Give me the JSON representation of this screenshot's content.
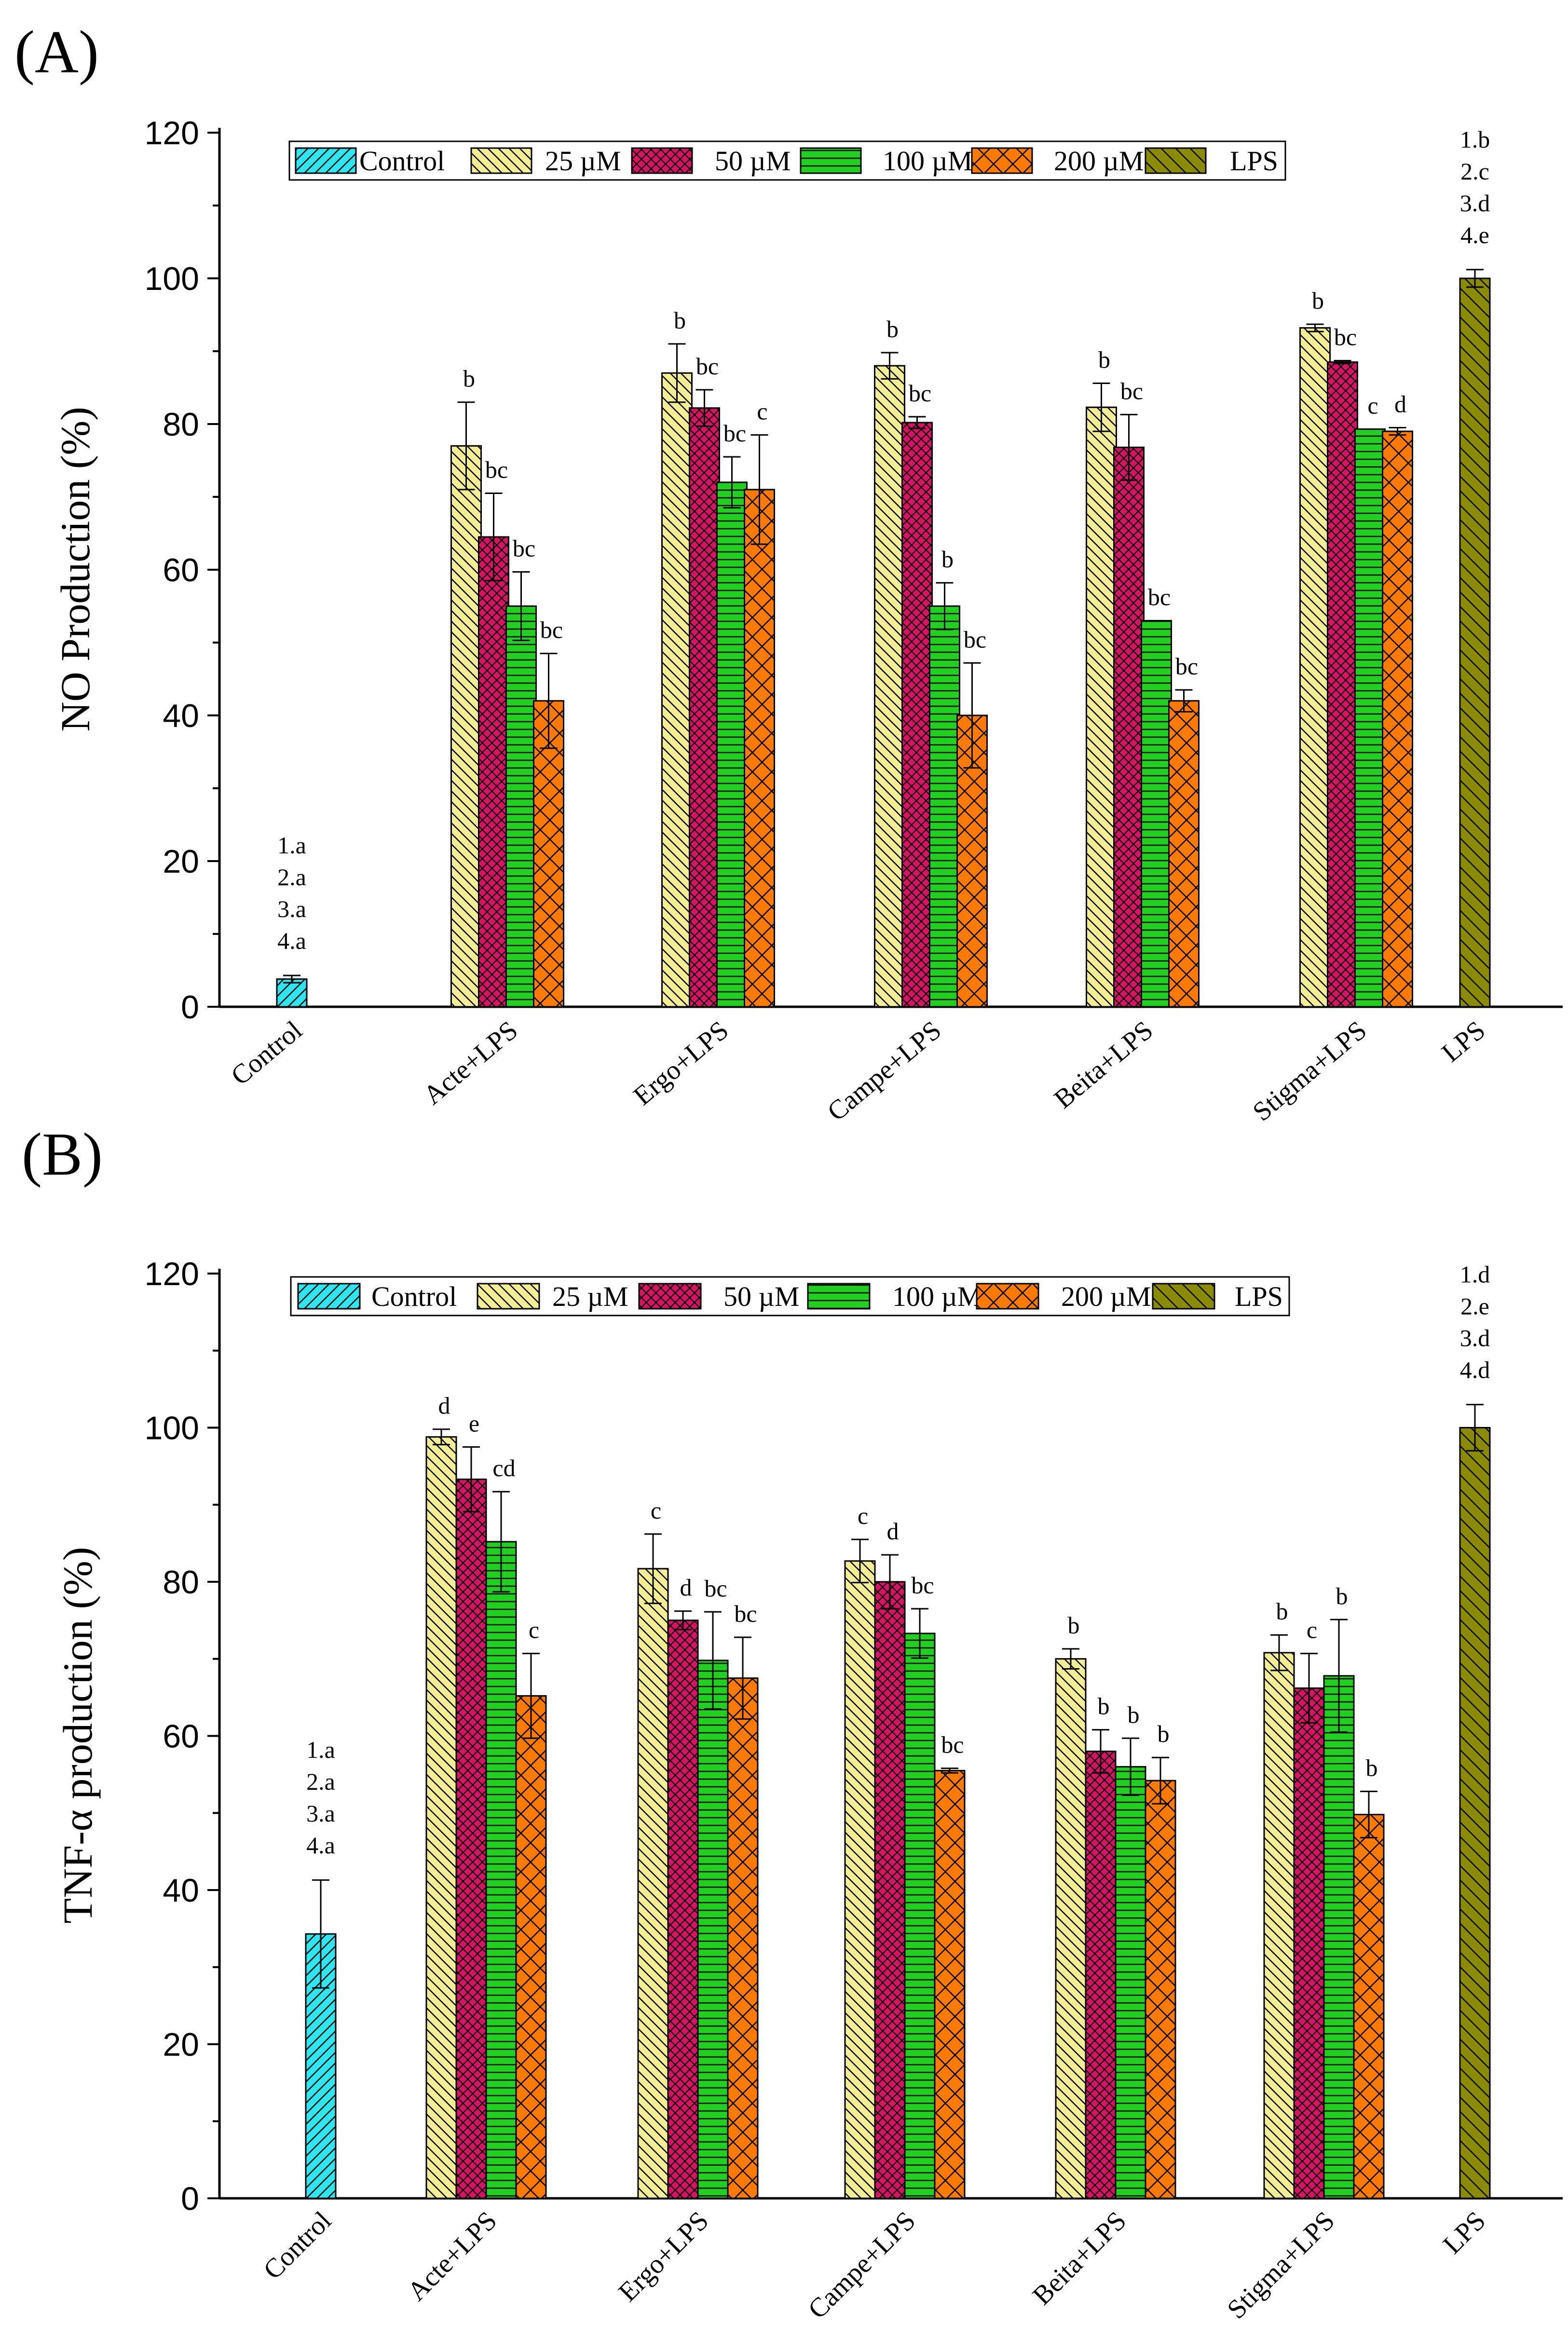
{
  "chart_data": [
    {
      "type": "bar",
      "panel": "(A)",
      "ylabel": "NO Production (%)",
      "ylim": [
        0,
        120
      ],
      "yticks": [
        0,
        20,
        40,
        60,
        80,
        100,
        120
      ],
      "categories": [
        "Control",
        "Acte+LPS",
        "Ergo+LPS",
        "Campe+LPS",
        "Beita+LPS",
        "Stigma+LPS",
        "LPS"
      ],
      "legend": [
        "Control",
        "25 µM",
        "50 µM",
        "100 µM",
        "200 µM",
        "LPS"
      ],
      "groups": [
        {
          "category": "Control",
          "bars": [
            {
              "series": "Control",
              "value": 3.8,
              "err": 0.5
            }
          ],
          "annotation": [
            "1.a",
            "2.a",
            "3.a",
            "4.a"
          ]
        },
        {
          "category": "Acte+LPS",
          "bars": [
            {
              "series": "25 µM",
              "value": 77,
              "err": 6,
              "label": "b"
            },
            {
              "series": "50 µM",
              "value": 64.5,
              "err": 6,
              "label": "bc"
            },
            {
              "series": "100 µM",
              "value": 55,
              "err": 4.7,
              "label": "bc"
            },
            {
              "series": "200 µM",
              "value": 42,
              "err": 6.5,
              "label": "bc"
            }
          ]
        },
        {
          "category": "Ergo+LPS",
          "bars": [
            {
              "series": "25 µM",
              "value": 87,
              "err": 4,
              "label": "b"
            },
            {
              "series": "50 µM",
              "value": 82.2,
              "err": 2.5,
              "label": "bc"
            },
            {
              "series": "100 µM",
              "value": 72,
              "err": 3.5,
              "label": "bc"
            },
            {
              "series": "200 µM",
              "value": 71,
              "err": 7.5,
              "label": "c"
            }
          ]
        },
        {
          "category": "Campe+LPS",
          "bars": [
            {
              "series": "25 µM",
              "value": 88,
              "err": 1.8,
              "label": "b"
            },
            {
              "series": "50 µM",
              "value": 80.2,
              "err": 0.8,
              "label": "bc"
            },
            {
              "series": "100 µM",
              "value": 55,
              "err": 3.2,
              "label": "b"
            },
            {
              "series": "200 µM",
              "value": 40,
              "err": 7.2,
              "label": "bc"
            }
          ]
        },
        {
          "category": "Beita+LPS",
          "bars": [
            {
              "series": "25 µM",
              "value": 82.3,
              "err": 3.3,
              "label": "b"
            },
            {
              "series": "50 µM",
              "value": 76.8,
              "err": 4.5,
              "label": "bc"
            },
            {
              "series": "100 µM",
              "value": 53,
              "err": 0,
              "label": "bc"
            },
            {
              "series": "200 µM",
              "value": 42,
              "err": 1.5,
              "label": "bc"
            }
          ]
        },
        {
          "category": "Stigma+LPS",
          "bars": [
            {
              "series": "25 µM",
              "value": 93.2,
              "err": 0.5,
              "label": "b"
            },
            {
              "series": "50 µM",
              "value": 88.5,
              "err": 0.2,
              "label": "bc"
            },
            {
              "series": "100 µM",
              "value": 79.3,
              "err": 0,
              "label": "c"
            },
            {
              "series": "200 µM",
              "value": 79,
              "err": 0.5,
              "label": "d"
            }
          ]
        },
        {
          "category": "LPS",
          "bars": [
            {
              "series": "LPS",
              "value": 100,
              "err": 1.2
            }
          ],
          "annotation": [
            "1.b",
            "2.c",
            "3.d",
            "4.e"
          ]
        }
      ]
    },
    {
      "type": "bar",
      "panel": "(B)",
      "ylabel": "TNF-α production (%)",
      "ylim": [
        0,
        120
      ],
      "yticks": [
        0,
        20,
        40,
        60,
        80,
        100,
        120
      ],
      "categories": [
        "Control",
        "Acte+LPS",
        "Ergo+LPS",
        "Campe+LPS",
        "Beita+LPS",
        "Stigma+LPS",
        "LPS"
      ],
      "legend": [
        "Control",
        "25 µM",
        "50 µM",
        "100 µM",
        "200 µM",
        "LPS"
      ],
      "groups": [
        {
          "category": "Control",
          "bars": [
            {
              "series": "Control",
              "value": 34.3,
              "err": 7
            }
          ],
          "annotation": [
            "1.a",
            "2.a",
            "3.a",
            "4.a"
          ]
        },
        {
          "category": "Acte+LPS",
          "bars": [
            {
              "series": "25 µM",
              "value": 98.8,
              "err": 1,
              "label": "d"
            },
            {
              "series": "50 µM",
              "value": 93.3,
              "err": 4.2,
              "label": "e"
            },
            {
              "series": "100 µM",
              "value": 85.2,
              "err": 6.5,
              "label": "cd"
            },
            {
              "series": "200 µM",
              "value": 65.2,
              "err": 5.5,
              "label": "c"
            }
          ]
        },
        {
          "category": "Ergo+LPS",
          "bars": [
            {
              "series": "25 µM",
              "value": 81.7,
              "err": 4.5,
              "label": "c"
            },
            {
              "series": "50 µM",
              "value": 75,
              "err": 1.2,
              "label": "d"
            },
            {
              "series": "100 µM",
              "value": 69.8,
              "err": 6.3,
              "label": "bc"
            },
            {
              "series": "200 µM",
              "value": 67.5,
              "err": 5.3,
              "label": "bc"
            }
          ]
        },
        {
          "category": "Campe+LPS",
          "bars": [
            {
              "series": "25 µM",
              "value": 82.7,
              "err": 2.8,
              "label": "c"
            },
            {
              "series": "50 µM",
              "value": 80,
              "err": 3.5,
              "label": "d"
            },
            {
              "series": "100 µM",
              "value": 73.3,
              "err": 3.2,
              "label": "bc"
            },
            {
              "series": "200 µM",
              "value": 55.5,
              "err": 0.3,
              "label": "bc"
            }
          ]
        },
        {
          "category": "Beita+LPS",
          "bars": [
            {
              "series": "25 µM",
              "value": 70,
              "err": 1.3,
              "label": "b"
            },
            {
              "series": "50 µM",
              "value": 58,
              "err": 2.8,
              "label": "b"
            },
            {
              "series": "100 µM",
              "value": 56,
              "err": 3.7,
              "label": "b"
            },
            {
              "series": "200 µM",
              "value": 54.2,
              "err": 3,
              "label": "b"
            }
          ]
        },
        {
          "category": "Stigma+LPS",
          "bars": [
            {
              "series": "25 µM",
              "value": 70.8,
              "err": 2.3,
              "label": "b"
            },
            {
              "series": "50 µM",
              "value": 66.2,
              "err": 4.5,
              "label": "c"
            },
            {
              "series": "100 µM",
              "value": 67.8,
              "err": 7.3,
              "label": "b"
            },
            {
              "series": "200 µM",
              "value": 49.8,
              "err": 3,
              "label": "b"
            }
          ]
        },
        {
          "category": "LPS",
          "bars": [
            {
              "series": "LPS",
              "value": 100,
              "err": 3
            }
          ],
          "annotation": [
            "1.d",
            "2.e",
            "3.d",
            "4.d"
          ]
        }
      ]
    }
  ],
  "colors": {
    "Control": "#2EE6F0",
    "25 µM": "#F3EE93",
    "50 µM": "#D61364",
    "100 µM": "#1FD01F",
    "200 µM": "#FF7A00",
    "LPS": "#8B8B00"
  }
}
